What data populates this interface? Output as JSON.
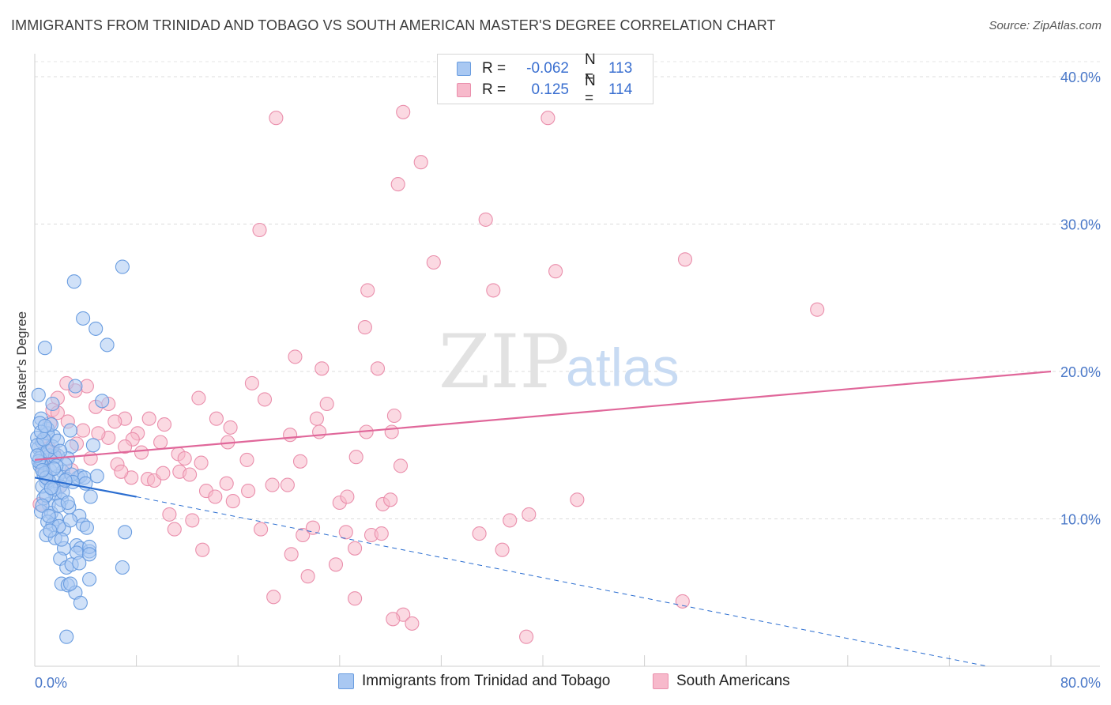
{
  "header": {
    "title": "IMMIGRANTS FROM TRINIDAD AND TOBAGO VS SOUTH AMERICAN MASTER'S DEGREE CORRELATION CHART",
    "source": "Source: ZipAtlas.com"
  },
  "watermark": {
    "zip": "ZIP",
    "atlas": "atlas"
  },
  "legend": {
    "rows": [
      {
        "r_label": "R =",
        "r_value": "-0.062",
        "n_label": "N =",
        "n_value": "113",
        "color": "#a9c8f2"
      },
      {
        "r_label": "R =",
        "r_value": "0.125",
        "n_label": "N =",
        "n_value": "114",
        "color": "#f7b9cb"
      }
    ]
  },
  "bottom_legend": {
    "series1": "Immigrants from Trinidad and Tobago",
    "series2": "South Americans"
  },
  "colors": {
    "blue_fill": "#a9c8f2",
    "blue_stroke": "#6a9de0",
    "blue_line": "#2a6dd0",
    "pink_fill": "#f7b9cb",
    "pink_stroke": "#ea8fac",
    "pink_line": "#e0679a",
    "tick_text": "#4a78c8"
  },
  "chart_data": {
    "type": "scatter",
    "title": "IMMIGRANTS FROM TRINIDAD AND TOBAGO VS SOUTH AMERICAN MASTER'S DEGREE CORRELATION CHART",
    "xlabel": "",
    "ylabel": "Master's Degree",
    "xlim": [
      0,
      80
    ],
    "ylim": [
      0,
      40
    ],
    "x_ticks": [
      "0.0%",
      "80.0%"
    ],
    "y_ticks": [
      {
        "value": 10,
        "label": "10.0%"
      },
      {
        "value": 20,
        "label": "20.0%"
      },
      {
        "value": 30,
        "label": "30.0%"
      },
      {
        "value": 40,
        "label": "40.0%"
      }
    ],
    "grid": true,
    "legend_position": "top-center",
    "series": [
      {
        "name": "Immigrants from Trinidad and Tobago",
        "r": -0.062,
        "n": 113,
        "trend": {
          "x0": 0,
          "y0": 12.8,
          "x1": 8,
          "y1": 11.5,
          "dash_to_x": 75,
          "dash_to_y": 0
        },
        "points": [
          [
            0.2,
            15.5
          ],
          [
            0.3,
            14.8
          ],
          [
            0.5,
            16.8
          ],
          [
            0.6,
            15.2
          ],
          [
            0.8,
            14.0
          ],
          [
            1.0,
            16.1
          ],
          [
            0.4,
            13.6
          ],
          [
            0.7,
            13.0
          ],
          [
            1.2,
            14.3
          ],
          [
            0.9,
            12.5
          ],
          [
            1.5,
            15.6
          ],
          [
            0.3,
            18.4
          ],
          [
            1.4,
            17.8
          ],
          [
            0.8,
            21.6
          ],
          [
            3.1,
            26.1
          ],
          [
            6.9,
            27.1
          ],
          [
            3.8,
            23.6
          ],
          [
            4.8,
            22.9
          ],
          [
            5.7,
            21.8
          ],
          [
            3.2,
            19.0
          ],
          [
            5.3,
            18.0
          ],
          [
            2.8,
            16.0
          ],
          [
            4.6,
            15.0
          ],
          [
            2.9,
            14.9
          ],
          [
            2.6,
            14.1
          ],
          [
            2.2,
            13.2
          ],
          [
            1.8,
            12.9
          ],
          [
            2.5,
            12.7
          ],
          [
            3.4,
            12.8
          ],
          [
            3.6,
            12.9
          ],
          [
            3.9,
            12.8
          ],
          [
            4.9,
            12.9
          ],
          [
            2.0,
            12.2
          ],
          [
            1.6,
            11.7
          ],
          [
            2.1,
            11.3
          ],
          [
            2.7,
            10.8
          ],
          [
            1.1,
            11.0
          ],
          [
            0.7,
            11.4
          ],
          [
            0.5,
            10.5
          ],
          [
            1.3,
            10.4
          ],
          [
            1.7,
            10.0
          ],
          [
            1.0,
            9.8
          ],
          [
            1.4,
            9.6
          ],
          [
            2.3,
            9.3
          ],
          [
            1.9,
            9.5
          ],
          [
            3.5,
            10.2
          ],
          [
            3.8,
            9.6
          ],
          [
            4.1,
            9.4
          ],
          [
            0.9,
            8.9
          ],
          [
            1.6,
            8.7
          ],
          [
            2.3,
            8.0
          ],
          [
            3.3,
            8.2
          ],
          [
            3.6,
            8.0
          ],
          [
            3.3,
            7.7
          ],
          [
            4.3,
            7.8
          ],
          [
            4.3,
            8.1
          ],
          [
            2.0,
            7.3
          ],
          [
            2.5,
            6.7
          ],
          [
            2.9,
            6.9
          ],
          [
            3.5,
            7.0
          ],
          [
            4.3,
            7.6
          ],
          [
            6.9,
            6.7
          ],
          [
            7.1,
            9.1
          ],
          [
            4.4,
            11.5
          ],
          [
            4.3,
            5.9
          ],
          [
            2.1,
            5.6
          ],
          [
            2.6,
            5.5
          ],
          [
            3.2,
            5.0
          ],
          [
            2.8,
            5.6
          ],
          [
            3.6,
            4.3
          ],
          [
            2.5,
            2.0
          ],
          [
            0.6,
            14.4
          ],
          [
            0.5,
            13.8
          ],
          [
            1.2,
            13.3
          ],
          [
            1.8,
            14.3
          ],
          [
            1.0,
            15.8
          ],
          [
            0.4,
            16.5
          ],
          [
            0.2,
            15.0
          ],
          [
            1.3,
            16.4
          ],
          [
            1.6,
            14.2
          ],
          [
            2.4,
            13.7
          ],
          [
            2.9,
            13.0
          ],
          [
            1.7,
            13.6
          ],
          [
            0.8,
            13.1
          ],
          [
            1.1,
            12.6
          ],
          [
            0.6,
            12.2
          ],
          [
            1.5,
            12.0
          ],
          [
            2.2,
            11.8
          ],
          [
            0.9,
            11.6
          ],
          [
            1.9,
            10.9
          ],
          [
            2.6,
            11.1
          ],
          [
            0.4,
            14.1
          ],
          [
            0.3,
            13.9
          ],
          [
            1.0,
            14.6
          ],
          [
            1.4,
            14.9
          ],
          [
            0.7,
            15.4
          ],
          [
            0.5,
            15.9
          ],
          [
            1.8,
            15.3
          ],
          [
            0.6,
            10.9
          ],
          [
            1.2,
            9.2
          ],
          [
            2.1,
            8.6
          ],
          [
            4.0,
            12.4
          ],
          [
            3.0,
            12.5
          ],
          [
            0.9,
            12.8
          ],
          [
            1.3,
            12.1
          ],
          [
            2.4,
            12.6
          ],
          [
            0.2,
            14.3
          ],
          [
            0.8,
            16.3
          ],
          [
            1.5,
            13.4
          ],
          [
            2.0,
            14.6
          ],
          [
            0.6,
            13.3
          ],
          [
            1.1,
            10.2
          ],
          [
            2.8,
            9.9
          ]
        ]
      },
      {
        "name": "South Americans",
        "r": 0.125,
        "n": 114,
        "trend": {
          "x0": 0,
          "y0": 14.0,
          "x1": 80,
          "y1": 20.0
        },
        "points": [
          [
            19.0,
            37.2
          ],
          [
            29.0,
            37.6
          ],
          [
            40.4,
            37.2
          ],
          [
            30.4,
            34.2
          ],
          [
            28.6,
            32.7
          ],
          [
            35.5,
            30.3
          ],
          [
            17.7,
            29.6
          ],
          [
            31.4,
            27.4
          ],
          [
            51.2,
            27.6
          ],
          [
            41.0,
            26.8
          ],
          [
            26.2,
            25.5
          ],
          [
            36.1,
            25.5
          ],
          [
            61.6,
            24.2
          ],
          [
            26.0,
            23.0
          ],
          [
            20.5,
            21.0
          ],
          [
            22.6,
            20.2
          ],
          [
            27.0,
            20.2
          ],
          [
            17.1,
            19.2
          ],
          [
            23.0,
            17.8
          ],
          [
            18.1,
            18.1
          ],
          [
            28.3,
            17.0
          ],
          [
            22.2,
            16.8
          ],
          [
            28.1,
            15.9
          ],
          [
            26.1,
            15.9
          ],
          [
            22.4,
            15.9
          ],
          [
            20.1,
            15.7
          ],
          [
            15.2,
            15.2
          ],
          [
            15.4,
            16.2
          ],
          [
            14.3,
            16.8
          ],
          [
            12.9,
            18.2
          ],
          [
            10.2,
            16.4
          ],
          [
            9.0,
            16.8
          ],
          [
            8.1,
            15.8
          ],
          [
            7.1,
            16.8
          ],
          [
            6.3,
            16.6
          ],
          [
            5.8,
            17.8
          ],
          [
            4.8,
            17.6
          ],
          [
            4.1,
            19.0
          ],
          [
            3.2,
            18.7
          ],
          [
            2.5,
            19.2
          ],
          [
            1.8,
            18.2
          ],
          [
            1.4,
            17.4
          ],
          [
            1.8,
            17.2
          ],
          [
            2.6,
            16.6
          ],
          [
            1.2,
            16.5
          ],
          [
            5.8,
            15.5
          ],
          [
            7.7,
            15.4
          ],
          [
            9.9,
            15.2
          ],
          [
            11.3,
            14.4
          ],
          [
            11.8,
            14.1
          ],
          [
            13.1,
            13.8
          ],
          [
            16.7,
            14.0
          ],
          [
            20.9,
            13.9
          ],
          [
            25.3,
            14.2
          ],
          [
            28.8,
            13.6
          ],
          [
            7.1,
            14.9
          ],
          [
            6.5,
            13.7
          ],
          [
            7.6,
            12.8
          ],
          [
            8.9,
            12.7
          ],
          [
            9.4,
            12.6
          ],
          [
            10.1,
            13.1
          ],
          [
            11.4,
            13.2
          ],
          [
            12.2,
            13.0
          ],
          [
            13.5,
            11.9
          ],
          [
            15.1,
            12.4
          ],
          [
            15.6,
            11.2
          ],
          [
            16.8,
            11.9
          ],
          [
            18.7,
            12.3
          ],
          [
            19.9,
            12.3
          ],
          [
            24.0,
            11.1
          ],
          [
            24.6,
            11.5
          ],
          [
            27.4,
            11.0
          ],
          [
            28.0,
            11.3
          ],
          [
            38.9,
            10.3
          ],
          [
            37.4,
            9.9
          ],
          [
            42.7,
            11.3
          ],
          [
            14.2,
            11.5
          ],
          [
            10.6,
            10.3
          ],
          [
            11.0,
            9.3
          ],
          [
            12.4,
            9.9
          ],
          [
            17.8,
            9.3
          ],
          [
            21.1,
            8.9
          ],
          [
            21.9,
            9.4
          ],
          [
            24.5,
            9.1
          ],
          [
            26.5,
            8.9
          ],
          [
            27.3,
            9.0
          ],
          [
            35.0,
            9.0
          ],
          [
            13.2,
            7.9
          ],
          [
            20.2,
            7.6
          ],
          [
            25.2,
            8.0
          ],
          [
            36.8,
            7.9
          ],
          [
            23.7,
            6.9
          ],
          [
            21.5,
            6.1
          ],
          [
            18.8,
            4.7
          ],
          [
            25.2,
            4.6
          ],
          [
            29.0,
            3.5
          ],
          [
            28.2,
            3.2
          ],
          [
            29.7,
            2.9
          ],
          [
            38.7,
            2.0
          ],
          [
            51.0,
            4.4
          ],
          [
            0.6,
            13.6
          ],
          [
            1.5,
            14.5
          ],
          [
            3.3,
            15.1
          ],
          [
            0.9,
            12.9
          ],
          [
            2.0,
            12.2
          ],
          [
            0.4,
            11.0
          ],
          [
            2.9,
            13.3
          ],
          [
            4.4,
            14.1
          ],
          [
            6.8,
            13.2
          ],
          [
            3.8,
            16.0
          ],
          [
            5.0,
            15.8
          ],
          [
            8.4,
            14.5
          ],
          [
            0.7,
            15.3
          ],
          [
            1.1,
            14.8
          ]
        ]
      }
    ]
  }
}
